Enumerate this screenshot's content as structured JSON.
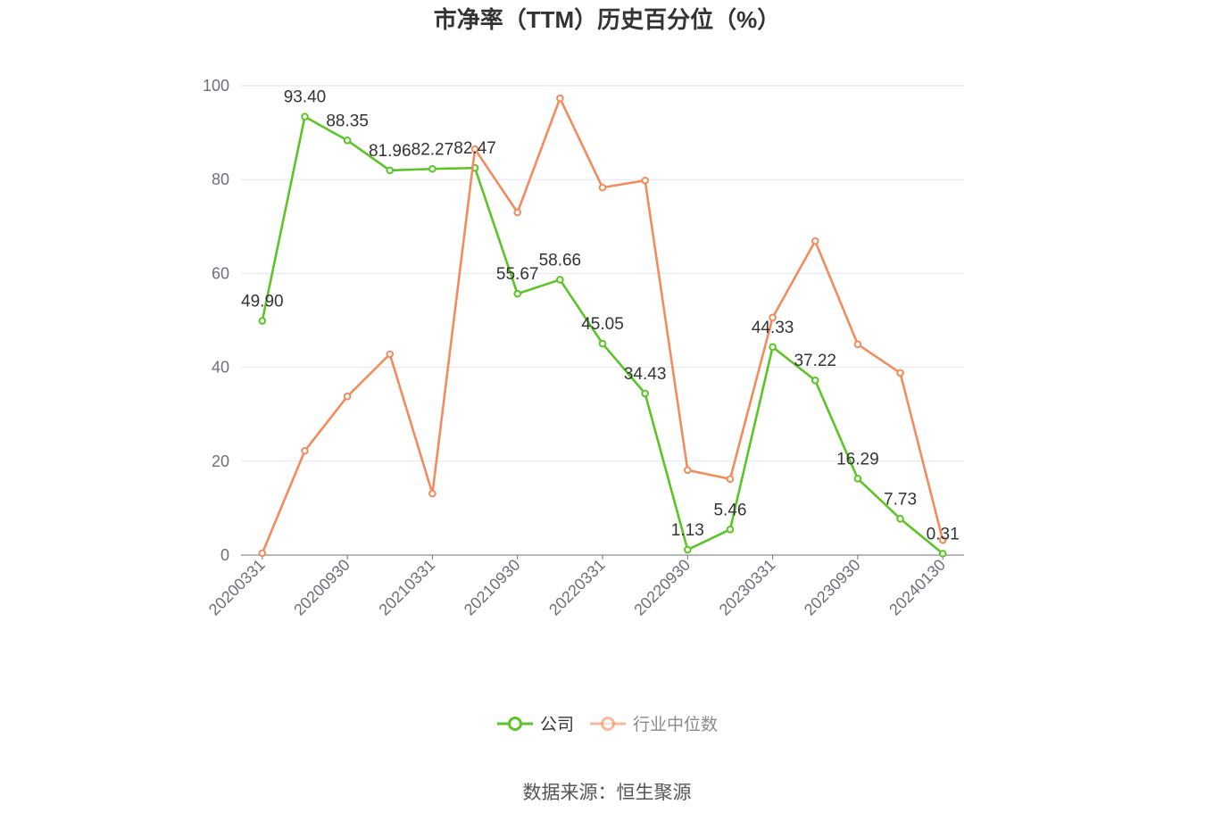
{
  "chart_data": {
    "type": "line",
    "title": "市净率（TTM）历史百分位（%）",
    "categories": [
      "20200331",
      "",
      "20200930",
      "",
      "20210331",
      "",
      "20210930",
      "",
      "20220331",
      "",
      "20220930",
      "",
      "20230331",
      "",
      "20230930",
      "",
      "20240130"
    ],
    "ylim": [
      0,
      100
    ],
    "yticks": [
      0,
      20,
      40,
      60,
      80,
      100
    ],
    "grid": true,
    "legend_position": "bottom",
    "series": [
      {
        "name": "公司",
        "color": "#5cc424",
        "data_labels": true,
        "values": [
          49.9,
          93.4,
          88.35,
          81.96,
          82.27,
          82.47,
          55.67,
          58.66,
          45.05,
          34.43,
          1.13,
          5.46,
          44.33,
          37.22,
          16.29,
          7.73,
          0.31
        ]
      },
      {
        "name": "行业中位数",
        "color": "#f28b5e",
        "data_labels": false,
        "values": [
          0.4,
          22.2,
          33.8,
          42.8,
          13.1,
          86.5,
          73.0,
          97.3,
          78.3,
          79.8,
          18.1,
          16.2,
          50.6,
          66.9,
          44.9,
          38.8,
          3.2
        ]
      }
    ]
  },
  "source": "数据来源：恒生聚源"
}
